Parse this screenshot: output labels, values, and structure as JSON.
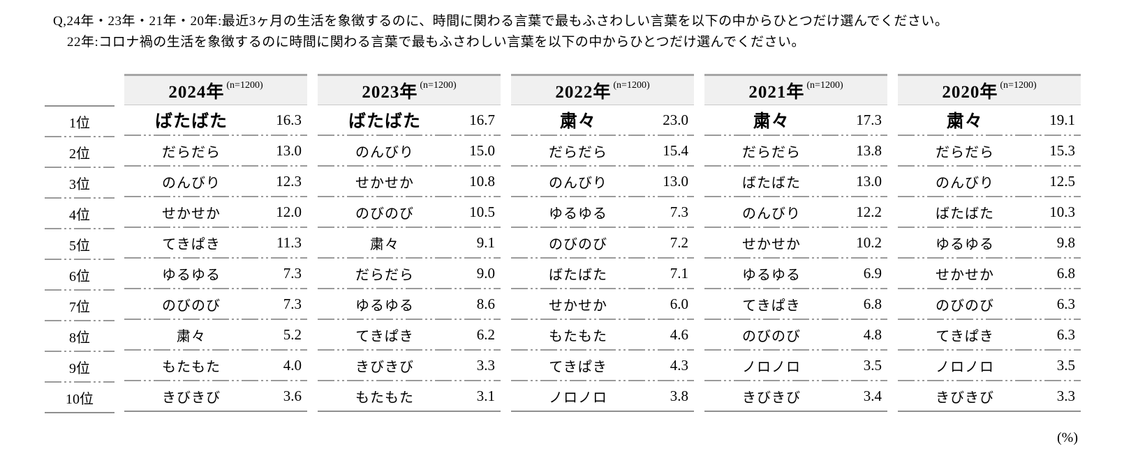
{
  "question": {
    "line1": "Q,24年・23年・21年・20年:最近3ヶ月の生活を象徴するのに、時間に関わる言葉で最もふさわしい言葉を以下の中からひとつだけ選んでください。",
    "line2": "22年:コロナ禍の生活を象徴するのに時間に関わる言葉で最もふさわしい言葉を以下の中からひとつだけ選んでください。"
  },
  "unit_label": "(%)",
  "colors": {
    "header_bg": "#f0f0f0",
    "header_top_border": "#a6a6a6",
    "solid_line": "#8f8f8f",
    "dashed_line": "#9a9a9a",
    "text": "#000000"
  },
  "chart_data": {
    "type": "table",
    "title": "時間に関わる言葉ランキング(年別)",
    "unit": "%",
    "rank_labels": [
      "1位",
      "2位",
      "3位",
      "4位",
      "5位",
      "6位",
      "7位",
      "8位",
      "9位",
      "10位"
    ],
    "columns": [
      {
        "year": "2024年",
        "n": "(n=1200)",
        "words": [
          "ばたばた",
          "だらだら",
          "のんびり",
          "せかせか",
          "てきぱき",
          "ゆるゆる",
          "のびのび",
          "粛々",
          "もたもた",
          "きびきび"
        ],
        "values": [
          16.3,
          13.0,
          12.3,
          12.0,
          11.3,
          7.3,
          7.3,
          5.2,
          4.0,
          3.6
        ]
      },
      {
        "year": "2023年",
        "n": "(n=1200)",
        "words": [
          "ばたばた",
          "のんびり",
          "せかせか",
          "のびのび",
          "粛々",
          "だらだら",
          "ゆるゆる",
          "てきぱき",
          "きびきび",
          "もたもた"
        ],
        "values": [
          16.7,
          15.0,
          10.8,
          10.5,
          9.1,
          9.0,
          8.6,
          6.2,
          3.3,
          3.1
        ]
      },
      {
        "year": "2022年",
        "n": "(n=1200)",
        "words": [
          "粛々",
          "だらだら",
          "のんびり",
          "ゆるゆる",
          "のびのび",
          "ばたばた",
          "せかせか",
          "もたもた",
          "てきぱき",
          "ノロノロ"
        ],
        "values": [
          23.0,
          15.4,
          13.0,
          7.3,
          7.2,
          7.1,
          6.0,
          4.6,
          4.3,
          3.8
        ]
      },
      {
        "year": "2021年",
        "n": "(n=1200)",
        "words": [
          "粛々",
          "だらだら",
          "ばたばた",
          "のんびり",
          "せかせか",
          "ゆるゆる",
          "てきぱき",
          "のびのび",
          "ノロノロ",
          "きびきび"
        ],
        "values": [
          17.3,
          13.8,
          13.0,
          12.2,
          10.2,
          6.9,
          6.8,
          4.8,
          3.5,
          3.4
        ]
      },
      {
        "year": "2020年",
        "n": "(n=1200)",
        "words": [
          "粛々",
          "だらだら",
          "のんびり",
          "ばたばた",
          "ゆるゆる",
          "せかせか",
          "のびのび",
          "てきぱき",
          "ノロノロ",
          "きびきび"
        ],
        "values": [
          19.1,
          15.3,
          12.5,
          10.3,
          9.8,
          6.8,
          6.3,
          6.3,
          3.5,
          3.3
        ]
      }
    ]
  }
}
